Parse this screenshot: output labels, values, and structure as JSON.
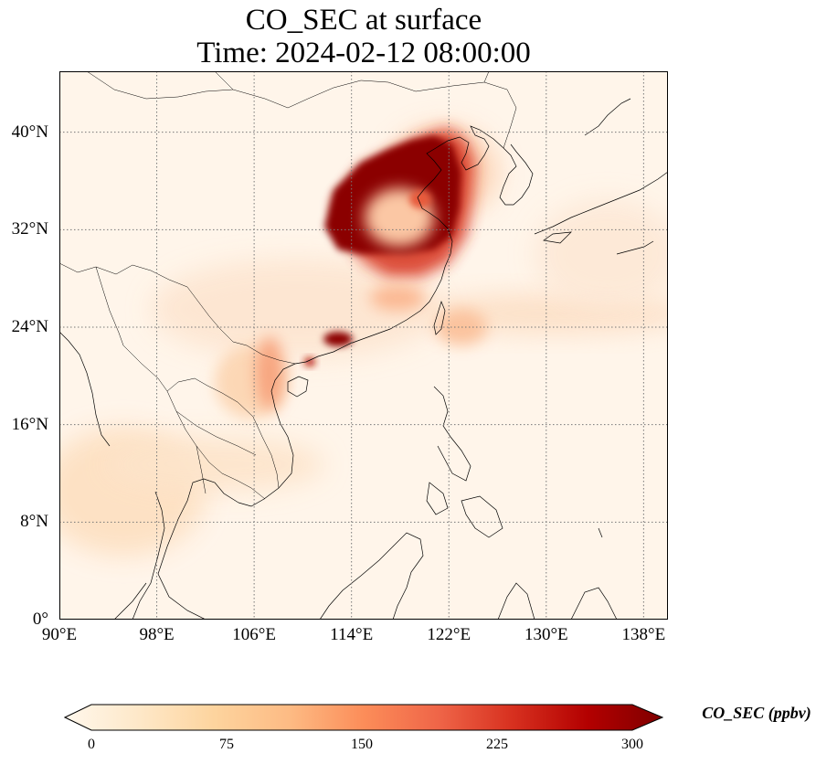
{
  "title_line1": "CO_SEC at surface",
  "title_line2": "Time: 2024-02-12 08:00:00",
  "map": {
    "lon_range": [
      90,
      140
    ],
    "lat_range": [
      0,
      45
    ],
    "lat_ticks": [
      "0°",
      "8°N",
      "16°N",
      "24°N",
      "32°N",
      "40°N"
    ],
    "lon_ticks": [
      "90°E",
      "98°E",
      "106°E",
      "114°E",
      "122°E",
      "130°E",
      "138°E"
    ],
    "gridlines": "dotted"
  },
  "colorbar": {
    "label": "CO_SEC (ppbv)",
    "ticks": [
      "0",
      "75",
      "150",
      "225",
      "300"
    ],
    "range": [
      0,
      300
    ],
    "colormap": "OrRd",
    "colors": [
      "#fff7ec",
      "#fee8c8",
      "#fdd49e",
      "#fdbb84",
      "#fc8d59",
      "#ef6548",
      "#d7301f",
      "#b30000",
      "#7f0000"
    ]
  }
}
